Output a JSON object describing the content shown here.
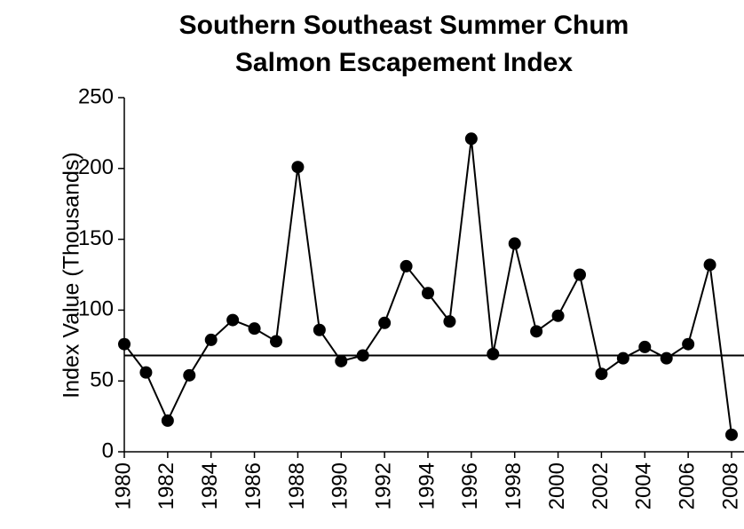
{
  "chart_data": {
    "type": "line",
    "title": [
      "Southern Southeast Summer Chum",
      "Salmon Escapement Index"
    ],
    "y_label": "Index Value (Thousands)",
    "x": [
      1980,
      1981,
      1982,
      1983,
      1984,
      1985,
      1986,
      1987,
      1988,
      1989,
      1990,
      1991,
      1992,
      1993,
      1994,
      1995,
      1996,
      1997,
      1998,
      1999,
      2000,
      2001,
      2002,
      2003,
      2004,
      2005,
      2006,
      2007,
      2008
    ],
    "values": [
      76,
      56,
      22,
      54,
      79,
      93,
      87,
      78,
      201,
      86,
      64,
      68,
      91,
      131,
      112,
      92,
      221,
      69,
      147,
      85,
      96,
      125,
      55,
      66,
      74,
      66,
      76,
      132,
      12
    ],
    "color": "#000000",
    "reference_line": 68,
    "xlim": [
      1980,
      2008
    ],
    "xticks": [
      1980,
      1982,
      1984,
      1986,
      1988,
      1990,
      1992,
      1994,
      1996,
      1998,
      2000,
      2002,
      2004,
      2006,
      2008
    ],
    "ylim": [
      0,
      250
    ],
    "yticks": [
      0,
      50,
      100,
      150,
      200,
      250
    ]
  }
}
